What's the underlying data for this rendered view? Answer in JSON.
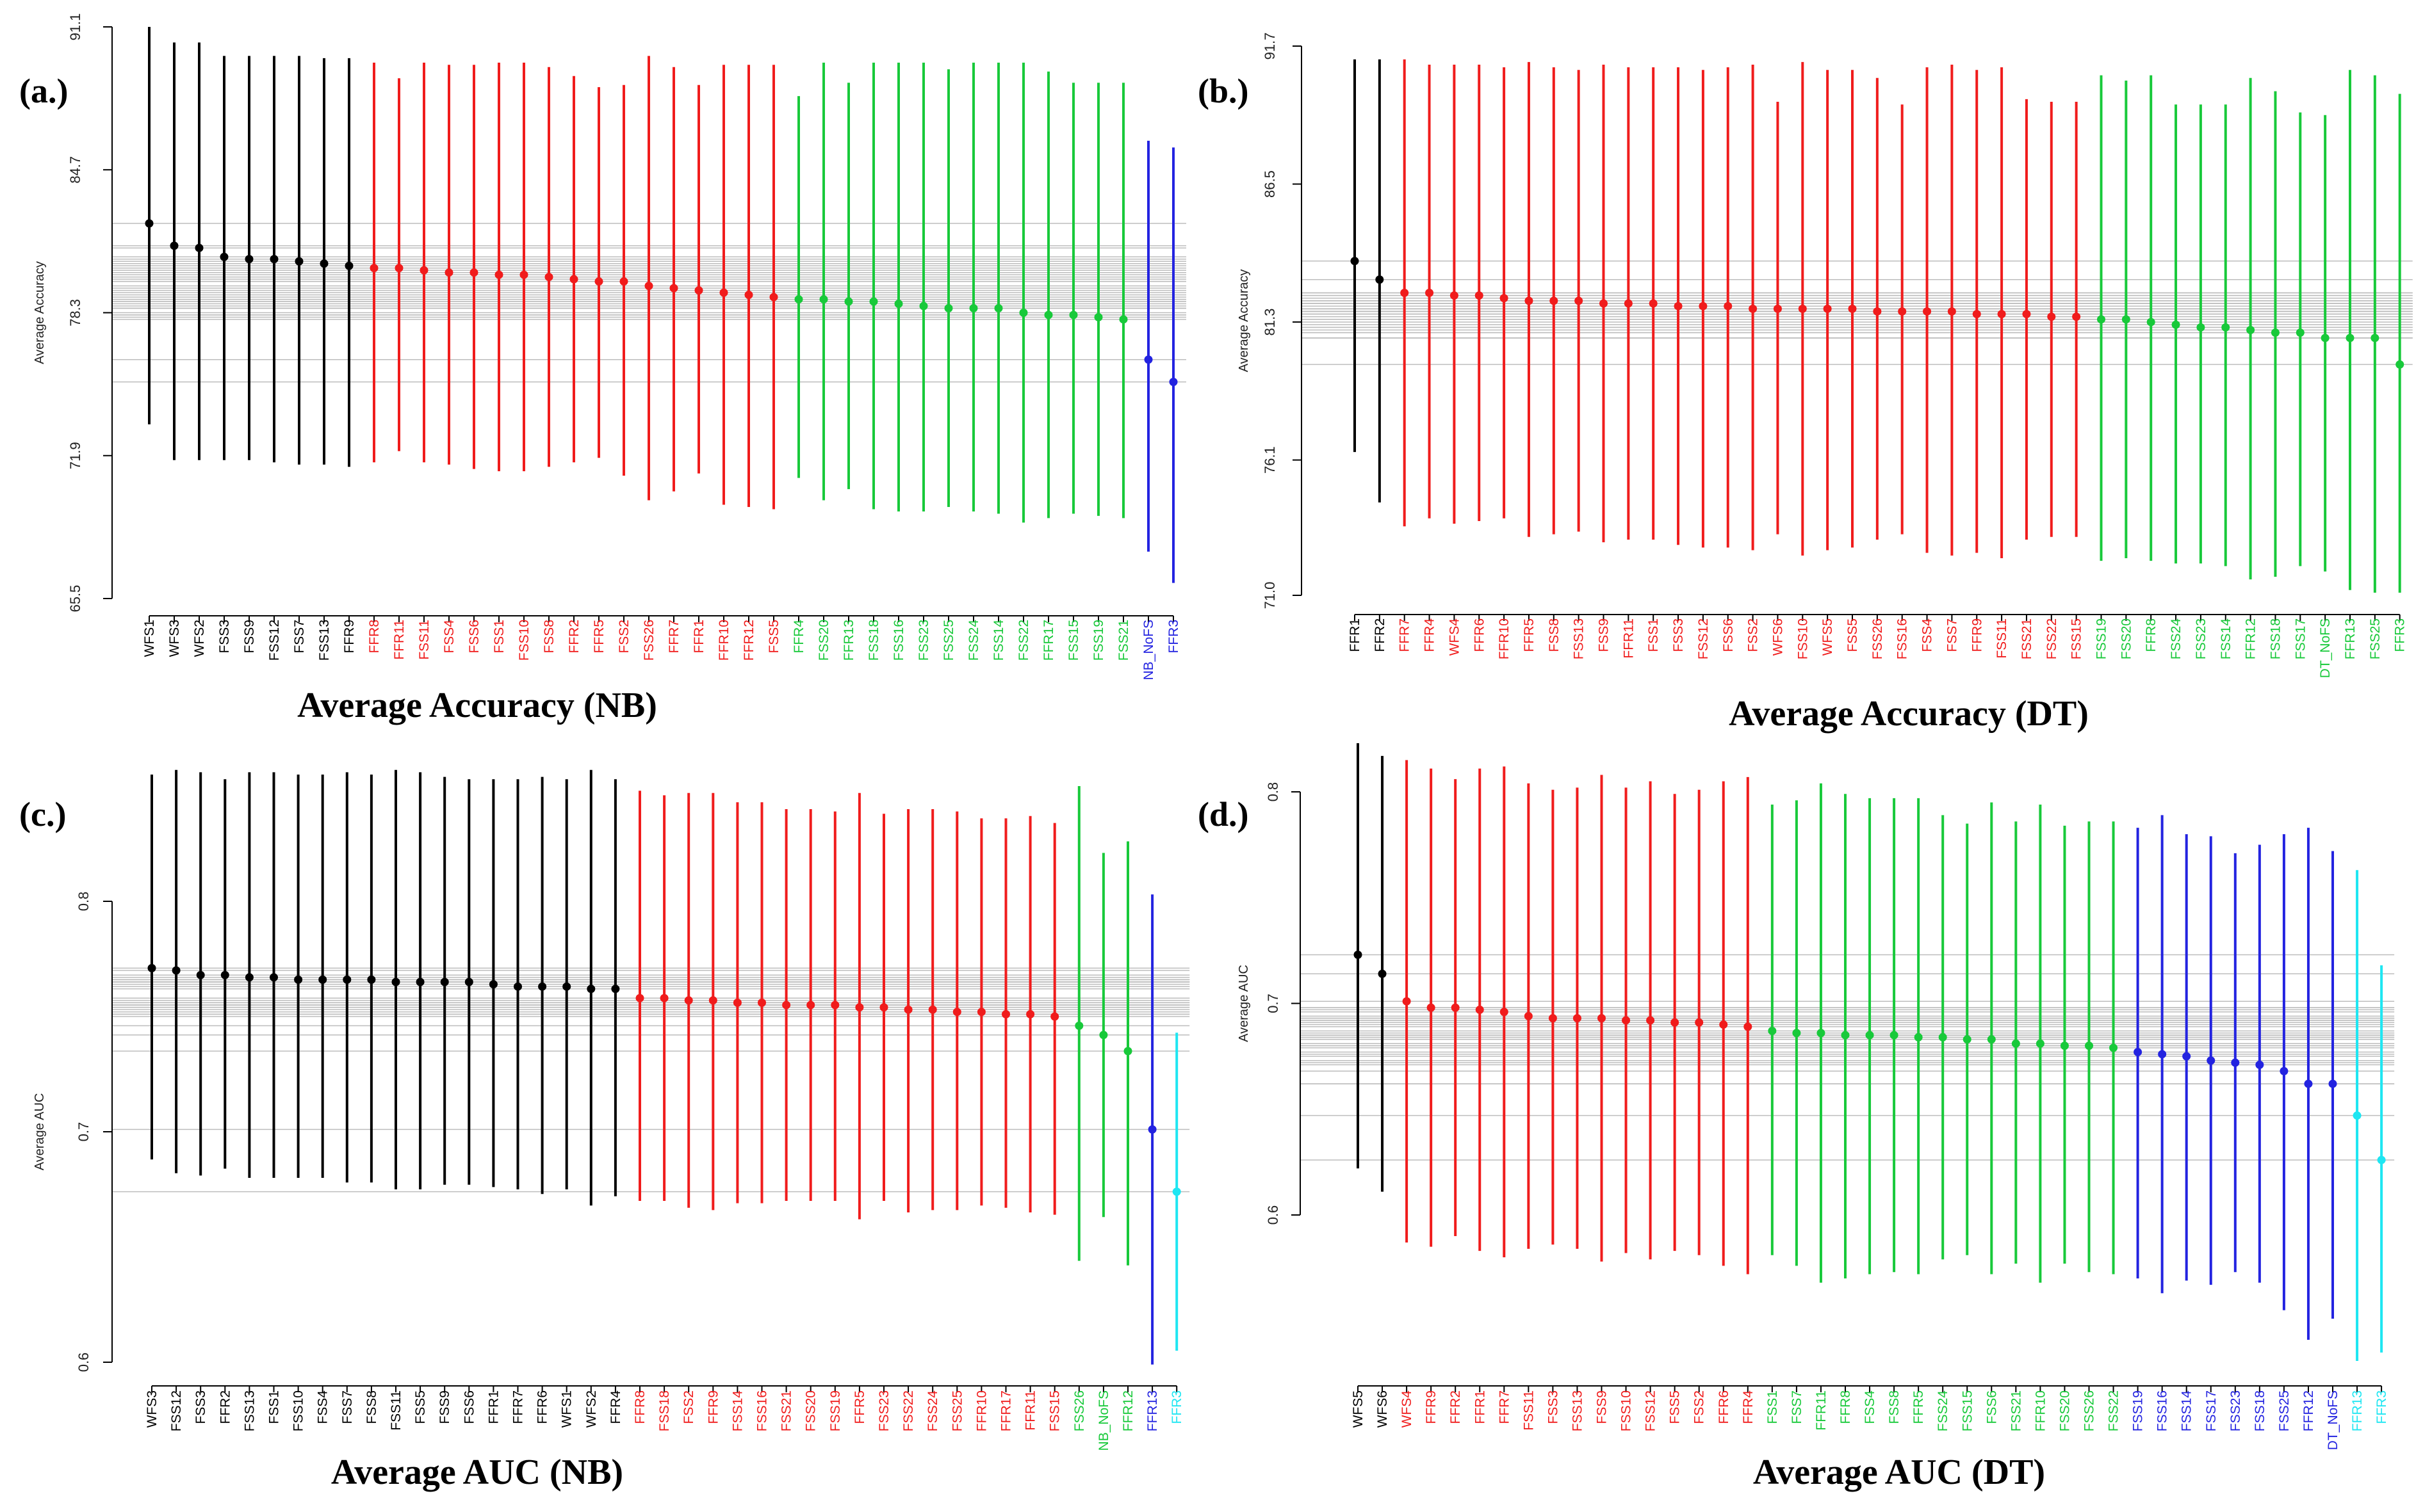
{
  "colors": {
    "black": "#000000",
    "red": "#f01c1c",
    "green": "#18c93a",
    "blue": "#2323e0",
    "cyan": "#1ee6f2",
    "grid": "#bdbdbd"
  },
  "chart_data": [
    {
      "type": "scatter",
      "panel_label": "(a.)",
      "title": "Average Accuracy (NB)",
      "ylabel": "Average Accuracy",
      "yticks": [
        "91.1",
        "84.7",
        "78.3",
        "71.9",
        "65.5"
      ],
      "ylim": [
        65.5,
        91.1
      ],
      "categories": [
        "WFS1",
        "WFS3",
        "WFS2",
        "FSS3",
        "FSS9",
        "FSS12",
        "FSS7",
        "FSS13",
        "FFR9",
        "FFR8",
        "FFR11",
        "FSS11",
        "FSS4",
        "FSS6",
        "FSS1",
        "FSS10",
        "FSS8",
        "FFR2",
        "FFR5",
        "FSS2",
        "FSS26",
        "FFR7",
        "FFR1",
        "FFR10",
        "FFR12",
        "FSS5",
        "FFR4",
        "FSS20",
        "FFR13",
        "FSS18",
        "FSS16",
        "FSS23",
        "FSS25",
        "FSS24",
        "FSS14",
        "FSS22",
        "FFR17",
        "FSS15",
        "FSS19",
        "FSS21",
        "NB_NoFS",
        "FFR3"
      ],
      "groups": [
        "black",
        "black",
        "black",
        "black",
        "black",
        "black",
        "black",
        "black",
        "black",
        "red",
        "red",
        "red",
        "red",
        "red",
        "red",
        "red",
        "red",
        "red",
        "red",
        "red",
        "red",
        "red",
        "red",
        "red",
        "red",
        "red",
        "green",
        "green",
        "green",
        "green",
        "green",
        "green",
        "green",
        "green",
        "green",
        "green",
        "green",
        "green",
        "green",
        "green",
        "blue",
        "blue"
      ],
      "means": [
        82.3,
        81.3,
        81.2,
        80.8,
        80.7,
        80.7,
        80.6,
        80.5,
        80.4,
        80.3,
        80.3,
        80.2,
        80.1,
        80.1,
        80.0,
        80.0,
        79.9,
        79.8,
        79.7,
        79.7,
        79.5,
        79.4,
        79.3,
        79.2,
        79.1,
        79.0,
        78.9,
        78.9,
        78.8,
        78.8,
        78.7,
        78.6,
        78.5,
        78.5,
        78.5,
        78.3,
        78.2,
        78.2,
        78.1,
        78.0,
        76.2,
        75.2
      ],
      "upper": [
        91.1,
        90.4,
        90.4,
        89.8,
        89.8,
        89.8,
        89.8,
        89.7,
        89.7,
        89.5,
        88.8,
        89.5,
        89.4,
        89.4,
        89.5,
        89.5,
        89.3,
        88.9,
        88.4,
        88.5,
        89.8,
        89.3,
        88.5,
        89.4,
        89.4,
        89.4,
        88.0,
        89.5,
        88.6,
        89.5,
        89.5,
        89.5,
        89.2,
        89.5,
        89.5,
        89.5,
        89.1,
        88.6,
        88.6,
        88.6,
        86.0,
        85.7
      ],
      "lower": [
        73.3,
        71.7,
        71.7,
        71.7,
        71.7,
        71.6,
        71.5,
        71.5,
        71.4,
        71.6,
        72.1,
        71.6,
        71.5,
        71.3,
        71.2,
        71.2,
        71.4,
        71.6,
        71.8,
        71.0,
        69.9,
        70.3,
        71.1,
        69.7,
        69.6,
        69.5,
        70.9,
        69.9,
        70.4,
        69.5,
        69.4,
        69.4,
        69.6,
        69.4,
        69.3,
        68.9,
        69.1,
        69.3,
        69.2,
        69.1,
        67.6,
        66.2
      ]
    },
    {
      "type": "scatter",
      "panel_label": "(b.)",
      "title": "Average Accuracy (DT)",
      "ylabel": "Average Accuracy",
      "yticks": [
        "91.7",
        "86.5",
        "81.3",
        "76.1",
        "71.0"
      ],
      "ylim": [
        71.0,
        91.7
      ],
      "categories": [
        "FFR1",
        "FFR2",
        "FFR7",
        "FFR4",
        "WFS4",
        "FFR6",
        "FFR10",
        "FFR5",
        "FSS8",
        "FSS13",
        "FSS9",
        "FFR11",
        "FSS1",
        "FSS3",
        "FSS12",
        "FSS6",
        "FSS2",
        "WFS6",
        "FSS10",
        "WFS5",
        "FSS5",
        "FSS26",
        "FSS16",
        "FSS4",
        "FSS7",
        "FFR9",
        "FSS11",
        "FSS21",
        "FSS22",
        "FSS15",
        "FSS19",
        "FSS20",
        "FFR8",
        "FSS24",
        "FSS23",
        "FSS14",
        "FFR12",
        "FSS18",
        "FSS17",
        "DT_NoFS",
        "FFR13",
        "FSS25",
        "FFR3"
      ],
      "groups": [
        "black",
        "black",
        "red",
        "red",
        "red",
        "red",
        "red",
        "red",
        "red",
        "red",
        "red",
        "red",
        "red",
        "red",
        "red",
        "red",
        "red",
        "red",
        "red",
        "red",
        "red",
        "red",
        "red",
        "red",
        "red",
        "red",
        "red",
        "red",
        "red",
        "red",
        "green",
        "green",
        "green",
        "green",
        "green",
        "green",
        "green",
        "green",
        "green",
        "green",
        "green",
        "green",
        "green"
      ],
      "means": [
        83.6,
        82.9,
        82.4,
        82.4,
        82.3,
        82.3,
        82.2,
        82.1,
        82.1,
        82.1,
        82.0,
        82.0,
        82.0,
        81.9,
        81.9,
        81.9,
        81.8,
        81.8,
        81.8,
        81.8,
        81.8,
        81.7,
        81.7,
        81.7,
        81.7,
        81.6,
        81.6,
        81.6,
        81.5,
        81.5,
        81.4,
        81.4,
        81.3,
        81.2,
        81.1,
        81.1,
        81.0,
        80.9,
        80.9,
        80.7,
        80.7,
        80.7,
        79.7
      ],
      "upper": [
        91.2,
        91.2,
        91.2,
        91.0,
        91.0,
        91.0,
        90.9,
        91.1,
        90.9,
        90.8,
        91.0,
        90.9,
        90.9,
        90.9,
        90.8,
        90.9,
        91.0,
        89.6,
        91.1,
        90.8,
        90.8,
        90.5,
        89.5,
        90.9,
        91.0,
        90.8,
        90.9,
        89.7,
        89.6,
        89.6,
        90.6,
        90.4,
        90.6,
        89.5,
        89.5,
        89.5,
        90.5,
        90.0,
        89.2,
        89.1,
        90.8,
        90.6,
        89.9
      ],
      "lower": [
        76.4,
        74.5,
        73.6,
        73.9,
        73.7,
        73.8,
        73.9,
        73.2,
        73.3,
        73.4,
        73.0,
        73.1,
        73.1,
        72.9,
        72.8,
        72.8,
        72.7,
        73.3,
        72.5,
        72.7,
        72.8,
        73.1,
        73.3,
        72.6,
        72.5,
        72.6,
        72.4,
        73.1,
        73.2,
        73.2,
        72.3,
        72.4,
        72.3,
        72.2,
        72.2,
        72.1,
        71.6,
        71.7,
        72.1,
        71.9,
        71.2,
        71.1,
        71.1
      ]
    },
    {
      "type": "scatter",
      "panel_label": "(c.)",
      "title": "Average AUC (NB)",
      "ylabel": "Average AUC",
      "yticks": [
        "0.8",
        "0.7",
        "0.6"
      ],
      "ylim": [
        0.6,
        0.8
      ],
      "categories": [
        "WFS3",
        "FSS12",
        "FSS3",
        "FFR2",
        "FSS13",
        "FSS1",
        "FSS10",
        "FSS4",
        "FSS7",
        "FSS8",
        "FSS11",
        "FSS5",
        "FSS9",
        "FSS6",
        "FFR1",
        "FFR7",
        "FFR6",
        "WFS1",
        "WFS2",
        "FFR4",
        "FFR8",
        "FSS18",
        "FSS2",
        "FFR9",
        "FSS14",
        "FSS16",
        "FSS21",
        "FSS20",
        "FSS19",
        "FFR5",
        "FSS23",
        "FSS22",
        "FSS24",
        "FSS25",
        "FFR10",
        "FFR17",
        "FFR11",
        "FSS15",
        "FSS26",
        "NB_NoFS",
        "FFR12",
        "FFR13",
        "FFR3"
      ],
      "groups": [
        "black",
        "black",
        "black",
        "black",
        "black",
        "black",
        "black",
        "black",
        "black",
        "black",
        "black",
        "black",
        "black",
        "black",
        "black",
        "black",
        "black",
        "black",
        "black",
        "black",
        "red",
        "red",
        "red",
        "red",
        "red",
        "red",
        "red",
        "red",
        "red",
        "red",
        "red",
        "red",
        "red",
        "red",
        "red",
        "red",
        "red",
        "red",
        "green",
        "green",
        "green",
        "blue",
        "cyan"
      ],
      "means": [
        0.771,
        0.77,
        0.768,
        0.768,
        0.767,
        0.767,
        0.766,
        0.766,
        0.766,
        0.766,
        0.765,
        0.765,
        0.765,
        0.765,
        0.764,
        0.763,
        0.763,
        0.763,
        0.762,
        0.762,
        0.758,
        0.758,
        0.757,
        0.757,
        0.756,
        0.756,
        0.755,
        0.755,
        0.755,
        0.754,
        0.754,
        0.753,
        0.753,
        0.752,
        0.752,
        0.751,
        0.751,
        0.75,
        0.746,
        0.742,
        0.735,
        0.701,
        0.674
      ],
      "upper": [
        0.855,
        0.857,
        0.856,
        0.853,
        0.856,
        0.856,
        0.855,
        0.855,
        0.856,
        0.855,
        0.857,
        0.856,
        0.854,
        0.853,
        0.853,
        0.853,
        0.854,
        0.853,
        0.857,
        0.853,
        0.848,
        0.846,
        0.847,
        0.847,
        0.843,
        0.843,
        0.84,
        0.84,
        0.839,
        0.847,
        0.838,
        0.84,
        0.84,
        0.839,
        0.836,
        0.836,
        0.837,
        0.834,
        0.85,
        0.821,
        0.826,
        0.803,
        0.743
      ],
      "lower": [
        0.688,
        0.682,
        0.681,
        0.684,
        0.68,
        0.68,
        0.68,
        0.68,
        0.678,
        0.678,
        0.675,
        0.675,
        0.677,
        0.677,
        0.676,
        0.675,
        0.673,
        0.675,
        0.668,
        0.672,
        0.67,
        0.67,
        0.667,
        0.666,
        0.669,
        0.669,
        0.67,
        0.67,
        0.67,
        0.662,
        0.67,
        0.665,
        0.666,
        0.666,
        0.668,
        0.667,
        0.665,
        0.664,
        0.644,
        0.663,
        0.642,
        0.599,
        0.605
      ]
    },
    {
      "type": "scatter",
      "panel_label": "(d.)",
      "title": "Average AUC (DT)",
      "ylabel": "Average AUC",
      "yticks": [
        "0.8",
        "0.7",
        "0.6"
      ],
      "ylim": [
        0.6,
        0.8
      ],
      "categories": [
        "WFS5",
        "WFS6",
        "WFS4",
        "FFR9",
        "FFR2",
        "FFR1",
        "FFR7",
        "FSS11",
        "FSS3",
        "FSS13",
        "FSS9",
        "FSS10",
        "FSS12",
        "FSS5",
        "FSS2",
        "FFR6",
        "FFR4",
        "FSS1",
        "FSS7",
        "FFR11",
        "FFR8",
        "FSS4",
        "FSS8",
        "FFR5",
        "FSS24",
        "FSS15",
        "FSS6",
        "FSS21",
        "FFR10",
        "FSS20",
        "FSS26",
        "FSS22",
        "FSS19",
        "FSS16",
        "FSS14",
        "FSS17",
        "FSS23",
        "FSS18",
        "FSS25",
        "FFR12",
        "DT_NoFS",
        "FFR13",
        "FFR3"
      ],
      "groups": [
        "black",
        "black",
        "red",
        "red",
        "red",
        "red",
        "red",
        "red",
        "red",
        "red",
        "red",
        "red",
        "red",
        "red",
        "red",
        "red",
        "red",
        "green",
        "green",
        "green",
        "green",
        "green",
        "green",
        "green",
        "green",
        "green",
        "green",
        "green",
        "green",
        "green",
        "green",
        "green",
        "blue",
        "blue",
        "blue",
        "blue",
        "blue",
        "blue",
        "blue",
        "blue",
        "blue",
        "cyan",
        "cyan"
      ],
      "means": [
        0.723,
        0.714,
        0.701,
        0.698,
        0.698,
        0.697,
        0.696,
        0.694,
        0.693,
        0.693,
        0.693,
        0.692,
        0.692,
        0.691,
        0.691,
        0.69,
        0.689,
        0.687,
        0.686,
        0.686,
        0.685,
        0.685,
        0.685,
        0.684,
        0.684,
        0.683,
        0.683,
        0.681,
        0.681,
        0.68,
        0.68,
        0.679,
        0.677,
        0.676,
        0.675,
        0.673,
        0.672,
        0.671,
        0.668,
        0.662,
        0.662,
        0.647,
        0.626
      ],
      "upper": [
        0.823,
        0.817,
        0.815,
        0.811,
        0.806,
        0.811,
        0.812,
        0.804,
        0.801,
        0.802,
        0.808,
        0.802,
        0.805,
        0.799,
        0.801,
        0.805,
        0.807,
        0.794,
        0.796,
        0.804,
        0.799,
        0.797,
        0.797,
        0.797,
        0.789,
        0.785,
        0.795,
        0.786,
        0.794,
        0.784,
        0.786,
        0.786,
        0.783,
        0.789,
        0.78,
        0.779,
        0.771,
        0.775,
        0.78,
        0.783,
        0.772,
        0.763,
        0.718
      ],
      "lower": [
        0.622,
        0.611,
        0.587,
        0.585,
        0.59,
        0.583,
        0.58,
        0.584,
        0.586,
        0.584,
        0.578,
        0.582,
        0.579,
        0.583,
        0.581,
        0.576,
        0.572,
        0.581,
        0.576,
        0.568,
        0.57,
        0.572,
        0.573,
        0.572,
        0.579,
        0.581,
        0.572,
        0.577,
        0.568,
        0.577,
        0.573,
        0.572,
        0.57,
        0.563,
        0.569,
        0.567,
        0.573,
        0.568,
        0.555,
        0.541,
        0.551,
        0.531,
        0.535
      ]
    }
  ]
}
